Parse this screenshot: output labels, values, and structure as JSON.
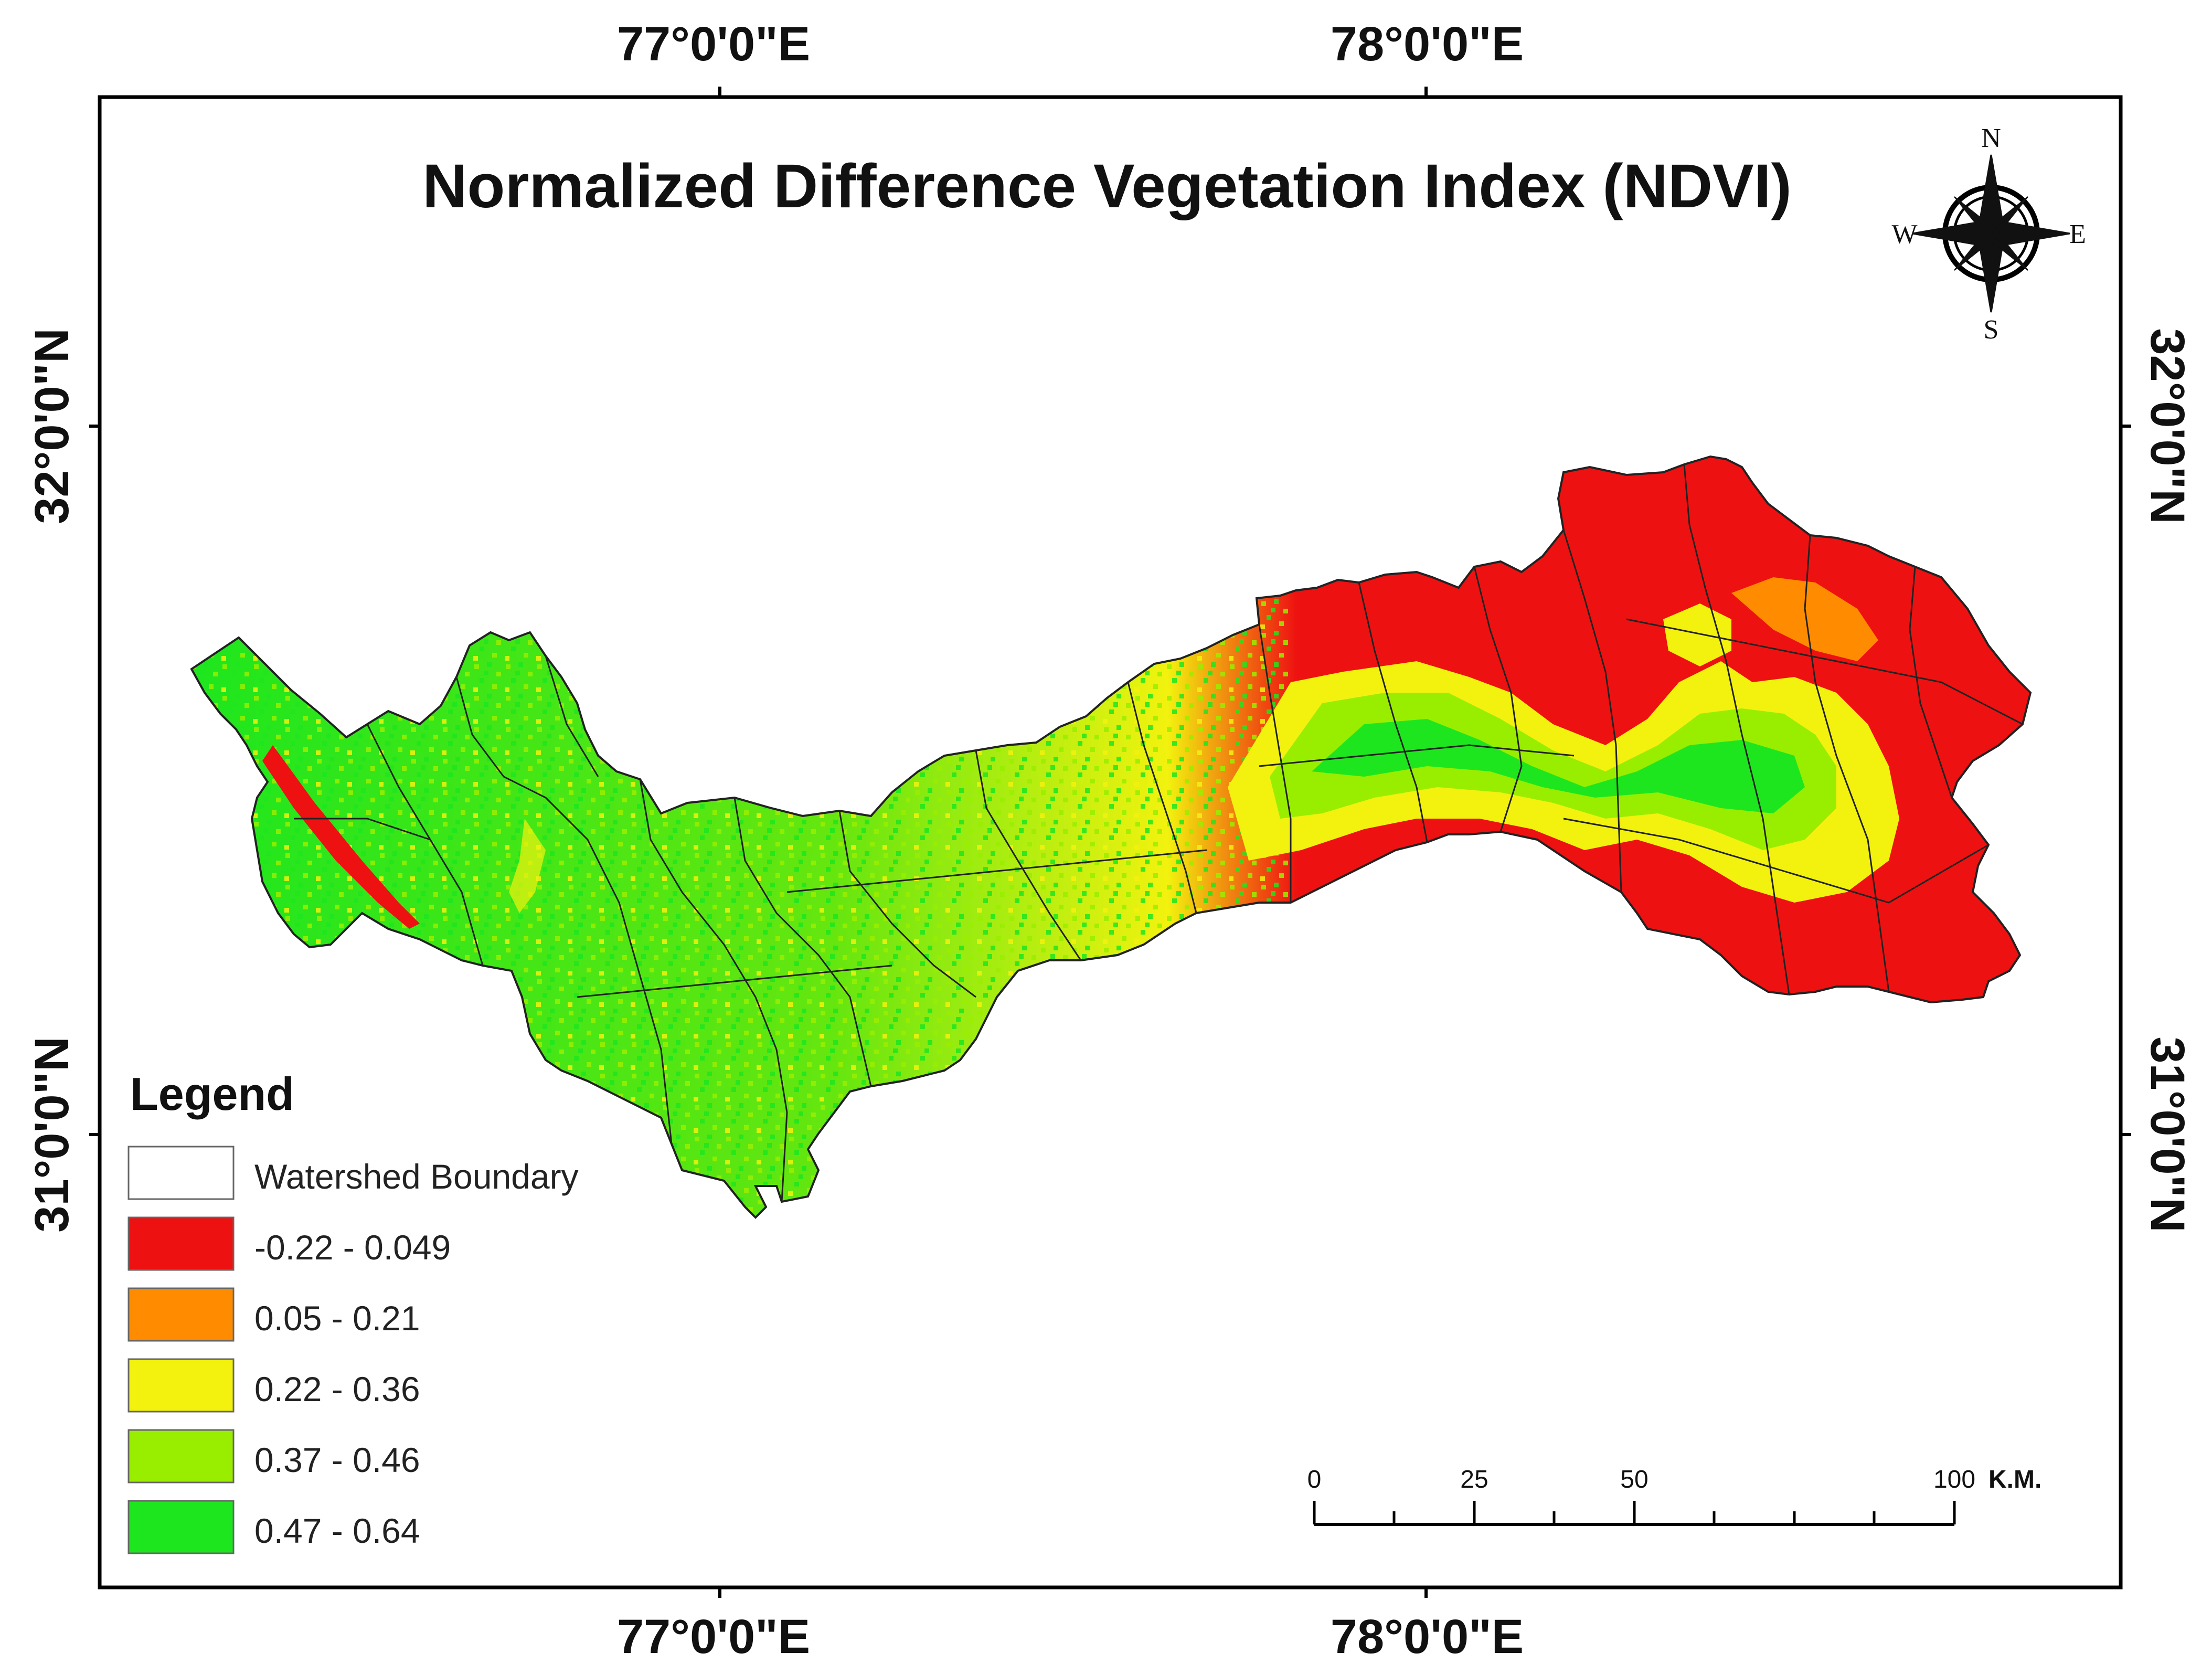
{
  "title": "Normalized Difference Vegetation Index (NDVI)",
  "graticule": {
    "top_labels": [
      "77°0'0\"E",
      "78°0'0\"E"
    ],
    "bottom_labels": [
      "77°0'0\"E",
      "78°0'0\"E"
    ],
    "left_labels": [
      "32°0'0\"N",
      "31°0'0\"N"
    ],
    "right_labels": [
      "32°0'0\"N",
      "31°0'0\"N"
    ]
  },
  "compass": {
    "n": "N",
    "s": "S",
    "e": "E",
    "w": "W"
  },
  "legend": {
    "heading": "Legend",
    "items": [
      {
        "label": "Watershed Boundary",
        "color": "#ffffff"
      },
      {
        "label": "-0.22 - 0.049",
        "color": "#ee1111"
      },
      {
        "label": "0.05 - 0.21",
        "color": "#ff8c00"
      },
      {
        "label": "0.22 - 0.36",
        "color": "#f2f20e"
      },
      {
        "label": "0.37 - 0.46",
        "color": "#99ee00"
      },
      {
        "label": "0.47 - 0.64",
        "color": "#1ee61e"
      }
    ]
  },
  "scale_bar": {
    "labels": [
      "0",
      "25",
      "50",
      "100"
    ],
    "unit": "K.M."
  }
}
